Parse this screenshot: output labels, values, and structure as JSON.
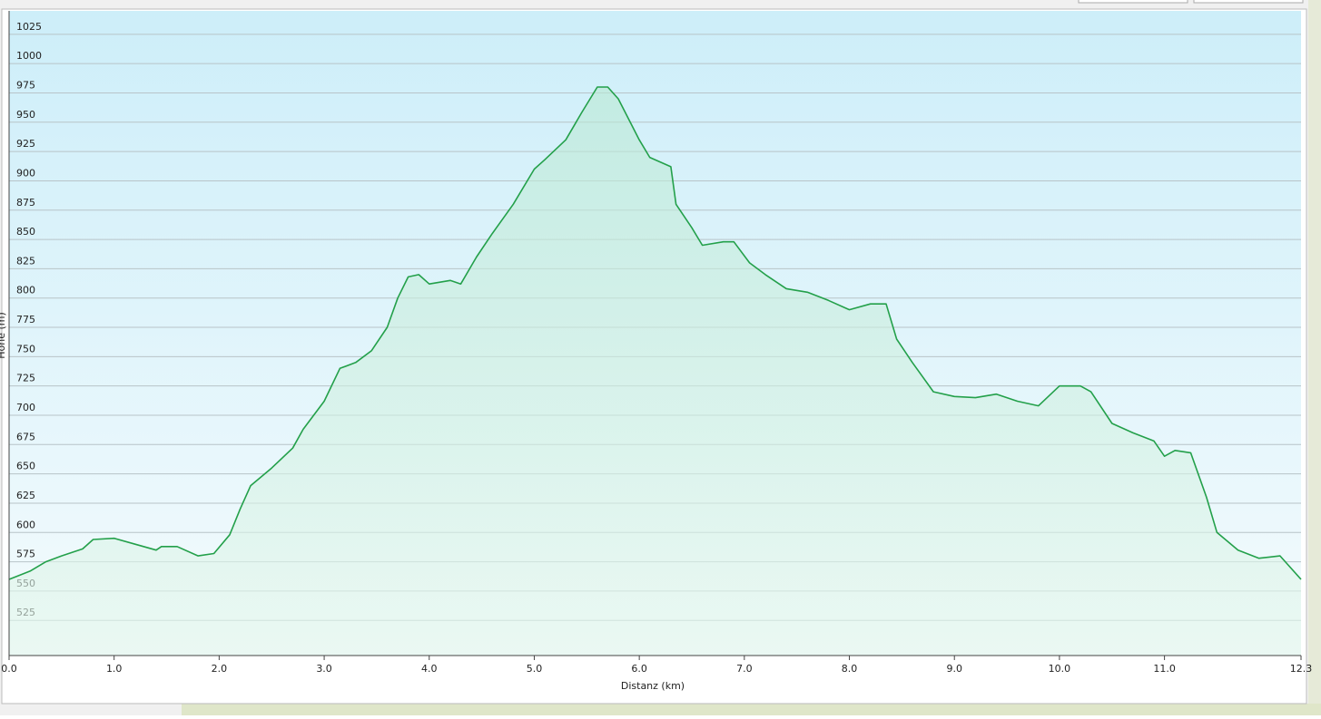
{
  "chart_data": {
    "type": "area",
    "xlabel": "Distanz  (km)",
    "ylabel": "Höhe (m)",
    "x": [
      0,
      0.2,
      0.35,
      0.5,
      0.7,
      0.8,
      1.0,
      1.2,
      1.4,
      1.45,
      1.6,
      1.8,
      1.95,
      2.1,
      2.2,
      2.3,
      2.5,
      2.7,
      2.8,
      3.0,
      3.15,
      3.3,
      3.45,
      3.6,
      3.7,
      3.8,
      3.9,
      4.0,
      4.2,
      4.3,
      4.45,
      4.6,
      4.8,
      5.0,
      5.1,
      5.3,
      5.45,
      5.6,
      5.7,
      5.8,
      6.0,
      6.1,
      6.3,
      6.35,
      6.5,
      6.6,
      6.8,
      6.9,
      7.05,
      7.2,
      7.4,
      7.6,
      7.8,
      8.0,
      8.2,
      8.35,
      8.45,
      8.6,
      8.8,
      9.0,
      9.2,
      9.4,
      9.6,
      9.8,
      10.0,
      10.2,
      10.3,
      10.5,
      10.7,
      10.9,
      11.0,
      11.1,
      11.25,
      11.4,
      11.5,
      11.7,
      11.9,
      12.1,
      12.3
    ],
    "values": [
      560,
      567,
      575,
      580,
      586,
      594,
      595,
      590,
      585,
      588,
      588,
      580,
      582,
      598,
      620,
      640,
      655,
      672,
      688,
      712,
      740,
      745,
      755,
      775,
      800,
      818,
      820,
      812,
      815,
      812,
      835,
      855,
      880,
      910,
      918,
      935,
      958,
      980,
      980,
      970,
      935,
      920,
      912,
      880,
      860,
      845,
      848,
      848,
      830,
      820,
      808,
      805,
      798,
      790,
      795,
      795,
      765,
      745,
      720,
      716,
      715,
      718,
      712,
      708,
      725,
      725,
      720,
      693,
      685,
      678,
      665,
      670,
      668,
      630,
      600,
      585,
      578,
      580,
      560
    ],
    "color": "#23a04a",
    "xlim": [
      0,
      12.3
    ],
    "xticks": [
      {
        "value": 0,
        "label": "0.0"
      },
      {
        "value": 1,
        "label": "1.0"
      },
      {
        "value": 2,
        "label": "2.0"
      },
      {
        "value": 3,
        "label": "3.0"
      },
      {
        "value": 4,
        "label": "4.0"
      },
      {
        "value": 5,
        "label": "5.0"
      },
      {
        "value": 6,
        "label": "6.0"
      },
      {
        "value": 7,
        "label": "7.0"
      },
      {
        "value": 8,
        "label": "8.0"
      },
      {
        "value": 9,
        "label": "9.0"
      },
      {
        "value": 10,
        "label": "10.0"
      },
      {
        "value": 11,
        "label": "11.0"
      },
      {
        "value": 12.3,
        "label": "12.3"
      }
    ],
    "ylim": [
      495,
      1045
    ],
    "yticks": [
      525,
      550,
      575,
      600,
      625,
      650,
      675,
      700,
      725,
      750,
      775,
      800,
      825,
      850,
      875,
      900,
      925,
      950,
      975,
      1000,
      1025
    ],
    "grid": true
  }
}
